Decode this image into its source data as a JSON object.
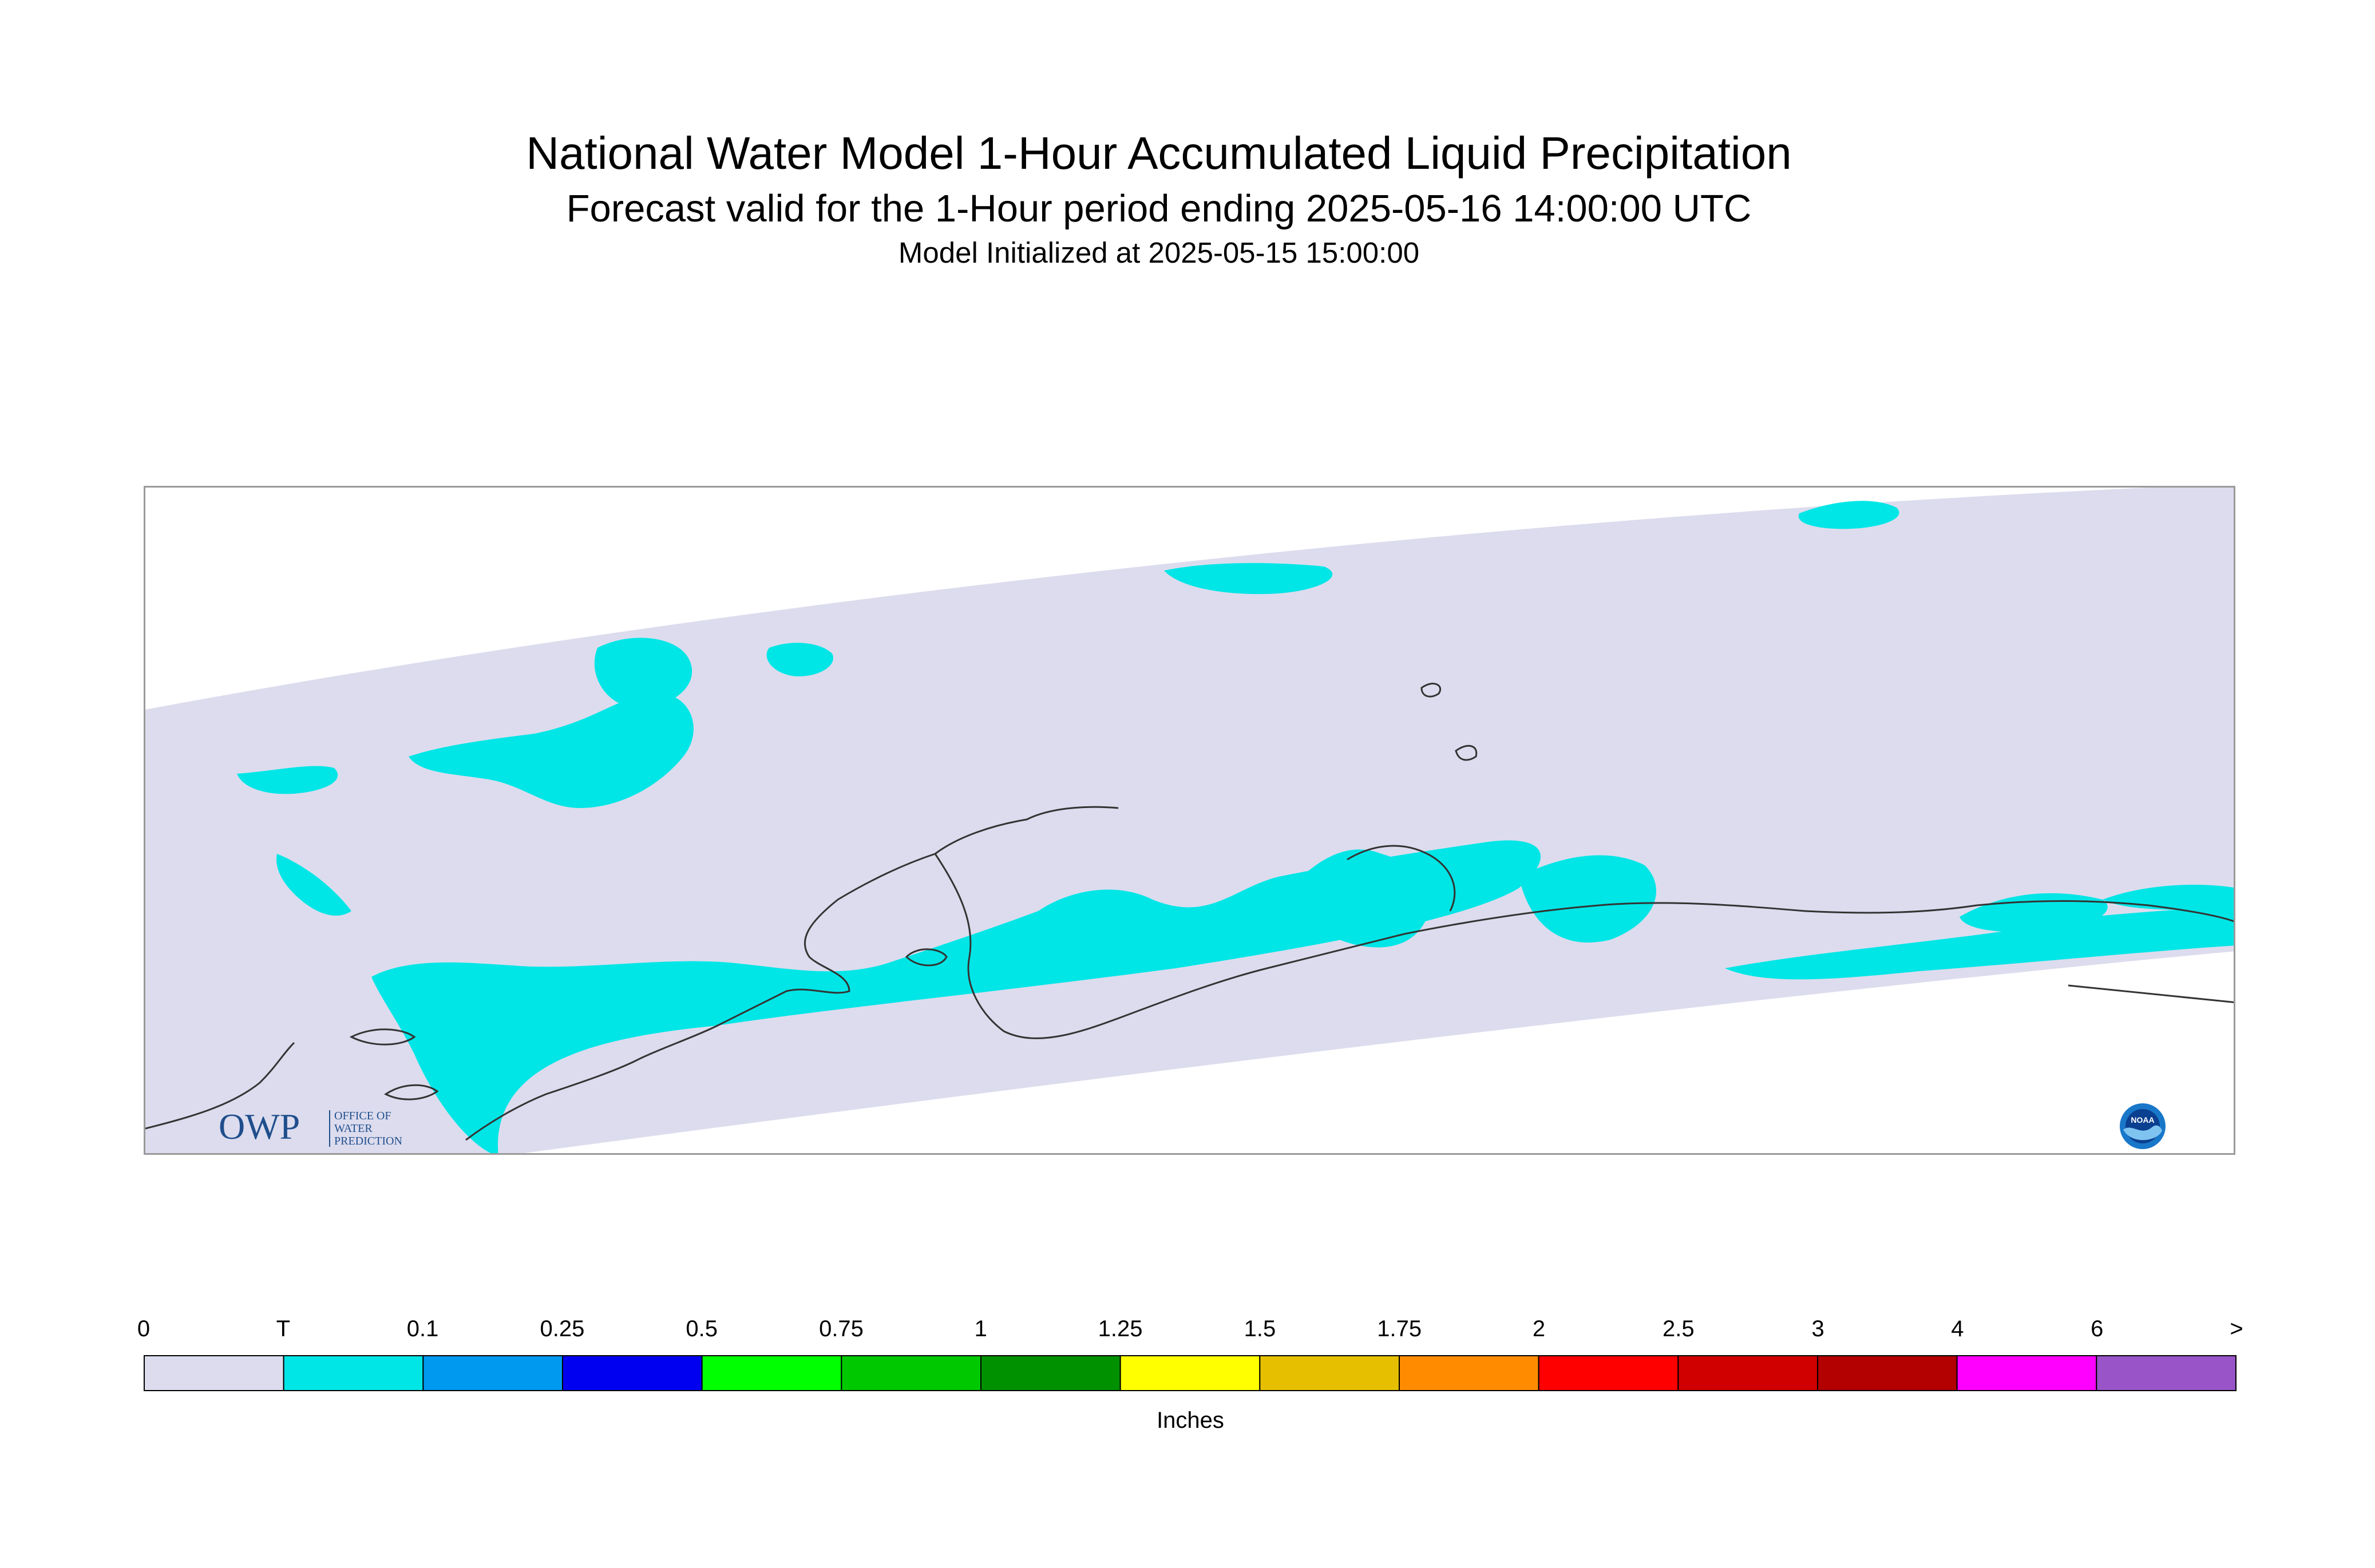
{
  "header": {
    "title": "National Water Model 1-Hour Accumulated Liquid Precipitation",
    "subtitle": "Forecast valid for the 1-Hour period ending 2025-05-16 14:00:00 UTC",
    "init_line": "Model Initialized at 2025-05-15 15:00:00"
  },
  "map": {
    "region": "Alaska",
    "background_color": "#dcdcee",
    "trace_precip_color": "#00e6e6",
    "coastline_color": "#333333",
    "max_category_present": "T"
  },
  "logos": {
    "owp": {
      "mark": "OWP",
      "text_lines": [
        "OFFICE OF",
        "WATER",
        "PREDICTION"
      ],
      "color": "#1f4e8c"
    },
    "noaa": {
      "mark": "NOAA",
      "color": "#1877c9"
    }
  },
  "legend": {
    "units": "Inches",
    "tick_labels": [
      "0",
      "T",
      "0.1",
      "0.25",
      "0.5",
      "0.75",
      "1",
      "1.25",
      "1.5",
      "1.75",
      "2",
      "2.5",
      "3",
      "4",
      "6",
      ">"
    ],
    "colors": [
      "#dcdcee",
      "#00e6e6",
      "#0099f0",
      "#0000f0",
      "#00ff00",
      "#00c800",
      "#009100",
      "#ffff00",
      "#e6c000",
      "#ff8c00",
      "#ff0000",
      "#d10000",
      "#b30000",
      "#ff00ff",
      "#9955c8"
    ]
  }
}
